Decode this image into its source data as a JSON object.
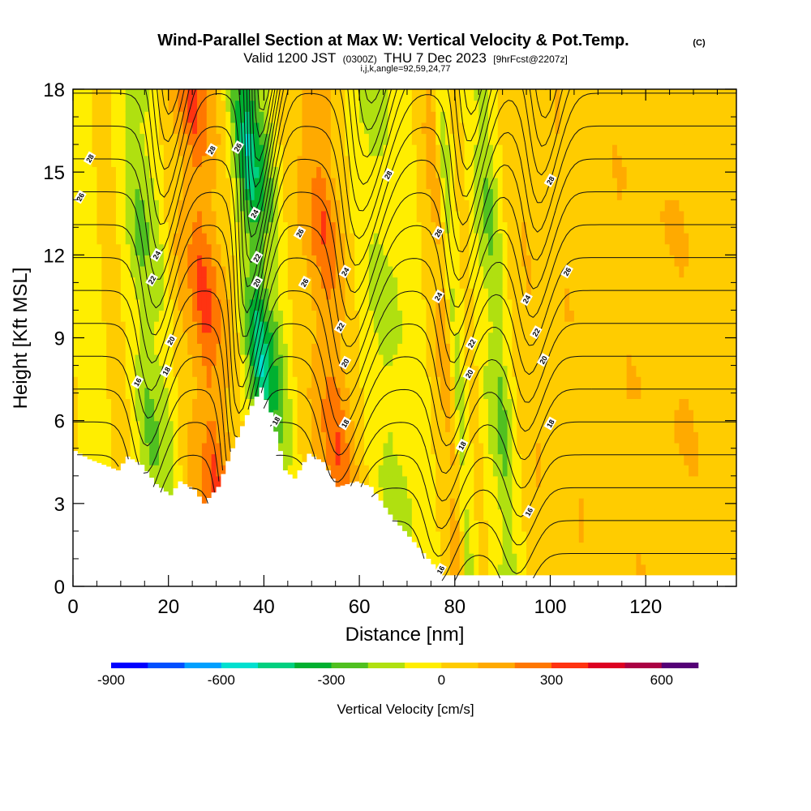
{
  "chart_data": {
    "type": "heatmap",
    "title": {
      "main": "Wind-Parallel Section at Max W: Vertical Velocity & Pot.Temp.",
      "main_tag": "(C)",
      "line2_a": "Valid 1200 JST",
      "line2_b": "(0300Z)",
      "line2_c": "THU 7 Dec 2023",
      "line2_d": "[9hrFcst@2207z]",
      "line3": "i,j,k,angle=92,59,24,77"
    },
    "xlabel": "Distance [nm]",
    "ylabel": "Height [Kft MSL]",
    "xlim": [
      0,
      139
    ],
    "ylim": [
      0,
      18
    ],
    "x_ticks": [
      "0",
      "20",
      "40",
      "60",
      "80",
      "100",
      "120"
    ],
    "x_tick_values": [
      0,
      20,
      40,
      60,
      80,
      100,
      120
    ],
    "y_ticks": [
      "0",
      "3",
      "6",
      "9",
      "12",
      "15",
      "18"
    ],
    "y_tick_values": [
      0,
      3,
      6,
      9,
      12,
      15,
      18
    ],
    "colorbar": {
      "label": "Vertical Velocity [cm/s]",
      "min": -900,
      "max": 700,
      "step": 100,
      "tick_labels": [
        "-900",
        "-600",
        "-300",
        "0",
        "300",
        "600"
      ],
      "tick_values": [
        -900,
        -600,
        -300,
        0,
        300,
        600
      ],
      "colors": [
        "#0000ff",
        "#0050ff",
        "#00a0ff",
        "#00e0d0",
        "#00d080",
        "#00b030",
        "#50c020",
        "#b0e010",
        "#ffee00",
        "#ffcc00",
        "#ffaa00",
        "#ff7700",
        "#ff3311",
        "#dd0022",
        "#aa0044",
        "#550077"
      ]
    },
    "columns_w": [
      {
        "x": 0,
        "w": 0
      },
      {
        "x": 5,
        "w": -20
      },
      {
        "x": 10,
        "w": 40
      },
      {
        "x": 15,
        "w": -250
      },
      {
        "x": 19,
        "w": -150
      },
      {
        "x": 22,
        "w": 80
      },
      {
        "x": 25,
        "w": 200
      },
      {
        "x": 28,
        "w": 380
      },
      {
        "x": 31,
        "w": 200
      },
      {
        "x": 34,
        "w": 60
      },
      {
        "x": 37,
        "w": -300
      },
      {
        "x": 39,
        "w": -520
      },
      {
        "x": 41,
        "w": -380
      },
      {
        "x": 43,
        "w": -250
      },
      {
        "x": 46,
        "w": 0
      },
      {
        "x": 50,
        "w": 150
      },
      {
        "x": 54,
        "w": 320
      },
      {
        "x": 57,
        "w": 150
      },
      {
        "x": 61,
        "w": -60
      },
      {
        "x": 65,
        "w": -160
      },
      {
        "x": 69,
        "w": -100
      },
      {
        "x": 74,
        "w": 0
      },
      {
        "x": 78,
        "w": 200
      },
      {
        "x": 80,
        "w": -200
      },
      {
        "x": 83,
        "w": 80
      },
      {
        "x": 86,
        "w": -120
      },
      {
        "x": 89,
        "w": -260
      },
      {
        "x": 92,
        "w": 0
      },
      {
        "x": 96,
        "w": 120
      },
      {
        "x": 100,
        "w": 0
      },
      {
        "x": 104,
        "w": 110
      },
      {
        "x": 110,
        "w": 40
      },
      {
        "x": 116,
        "w": 110
      },
      {
        "x": 122,
        "w": 80
      },
      {
        "x": 128,
        "w": 120
      },
      {
        "x": 134,
        "w": 60
      },
      {
        "x": 139,
        "w": 90
      }
    ],
    "terrain": [
      {
        "x": 0,
        "z": 4.9
      },
      {
        "x": 3,
        "z": 4.6
      },
      {
        "x": 9,
        "z": 4.2
      },
      {
        "x": 11,
        "z": 4.7
      },
      {
        "x": 14,
        "z": 4.4
      },
      {
        "x": 17,
        "z": 3.7
      },
      {
        "x": 20,
        "z": 3.3
      },
      {
        "x": 22,
        "z": 3.8
      },
      {
        "x": 25,
        "z": 3.5
      },
      {
        "x": 27,
        "z": 3.0
      },
      {
        "x": 30,
        "z": 3.6
      },
      {
        "x": 33,
        "z": 5.0
      },
      {
        "x": 36,
        "z": 6.2
      },
      {
        "x": 39,
        "z": 7.2
      },
      {
        "x": 41,
        "z": 6.3
      },
      {
        "x": 44,
        "z": 4.2
      },
      {
        "x": 46,
        "z": 3.9
      },
      {
        "x": 49,
        "z": 4.8
      },
      {
        "x": 52,
        "z": 4.5
      },
      {
        "x": 55,
        "z": 3.6
      },
      {
        "x": 59,
        "z": 3.8
      },
      {
        "x": 62,
        "z": 3.6
      },
      {
        "x": 66,
        "z": 2.6
      },
      {
        "x": 70,
        "z": 1.8
      },
      {
        "x": 74,
        "z": 1.0
      },
      {
        "x": 77,
        "z": 0.4
      },
      {
        "x": 80,
        "z": 0.4
      },
      {
        "x": 90,
        "z": 0.4
      },
      {
        "x": 100,
        "z": 0.4
      },
      {
        "x": 120,
        "z": 0.4
      },
      {
        "x": 139,
        "z": 0.4
      }
    ],
    "theta_base": {
      "theta0": 16,
      "dtheta_per_kft": 0.42
    },
    "theta_waves": [
      {
        "x": 17,
        "amp": 1.6,
        "width": 4,
        "tilt": 0.55
      },
      {
        "x": 36,
        "amp": 2.6,
        "width": 3.5,
        "tilt": 0.62
      },
      {
        "x": 58,
        "amp": 1.8,
        "width": 5,
        "tilt": 0.75
      },
      {
        "x": 80,
        "amp": 1.6,
        "width": 4,
        "tilt": 0.6
      },
      {
        "x": 96,
        "amp": 1.3,
        "width": 4,
        "tilt": 0.5
      }
    ],
    "contour_levels": [
      16,
      16.5,
      17,
      17.5,
      18,
      18.5,
      19,
      19.5,
      20,
      20.5,
      21,
      21.5,
      22,
      22.5,
      23,
      23.5,
      24,
      24.5,
      25,
      25.5,
      26,
      26.5,
      27,
      27.5,
      28,
      28.5,
      29
    ],
    "contour_labels": [
      {
        "x": 1.5,
        "z": 14.1,
        "text": "26"
      },
      {
        "x": 3.5,
        "z": 15.5,
        "text": "28"
      },
      {
        "x": 13.5,
        "z": 7.4,
        "text": "16"
      },
      {
        "x": 19.5,
        "z": 7.8,
        "text": "18"
      },
      {
        "x": 20.5,
        "z": 8.9,
        "text": "20"
      },
      {
        "x": 16.5,
        "z": 11.1,
        "text": "22"
      },
      {
        "x": 17.5,
        "z": 12.0,
        "text": "24"
      },
      {
        "x": 29,
        "z": 15.8,
        "text": "28"
      },
      {
        "x": 34.5,
        "z": 15.9,
        "text": "26"
      },
      {
        "x": 38,
        "z": 13.5,
        "text": "24"
      },
      {
        "x": 38.5,
        "z": 11.9,
        "text": "22"
      },
      {
        "x": 38.5,
        "z": 11.0,
        "text": "20"
      },
      {
        "x": 42.5,
        "z": 6.0,
        "text": "18"
      },
      {
        "x": 47.5,
        "z": 12.8,
        "text": "26"
      },
      {
        "x": 48.5,
        "z": 11.0,
        "text": "26"
      },
      {
        "x": 57,
        "z": 11.4,
        "text": "24"
      },
      {
        "x": 56,
        "z": 9.4,
        "text": "22"
      },
      {
        "x": 57,
        "z": 8.1,
        "text": "20"
      },
      {
        "x": 57,
        "z": 5.9,
        "text": "18"
      },
      {
        "x": 66,
        "z": 14.9,
        "text": "28"
      },
      {
        "x": 76.5,
        "z": 12.8,
        "text": "26"
      },
      {
        "x": 76.5,
        "z": 10.5,
        "text": "24"
      },
      {
        "x": 83.5,
        "z": 8.8,
        "text": "22"
      },
      {
        "x": 83,
        "z": 7.7,
        "text": "20"
      },
      {
        "x": 81.5,
        "z": 5.1,
        "text": "18"
      },
      {
        "x": 77,
        "z": 0.6,
        "text": "16"
      },
      {
        "x": 95,
        "z": 10.4,
        "text": "24"
      },
      {
        "x": 97,
        "z": 9.2,
        "text": "22"
      },
      {
        "x": 98.5,
        "z": 8.2,
        "text": "20"
      },
      {
        "x": 100,
        "z": 5.9,
        "text": "18"
      },
      {
        "x": 95.5,
        "z": 2.7,
        "text": "16"
      },
      {
        "x": 100,
        "z": 14.7,
        "text": "28"
      },
      {
        "x": 103.5,
        "z": 11.4,
        "text": "26"
      }
    ]
  }
}
